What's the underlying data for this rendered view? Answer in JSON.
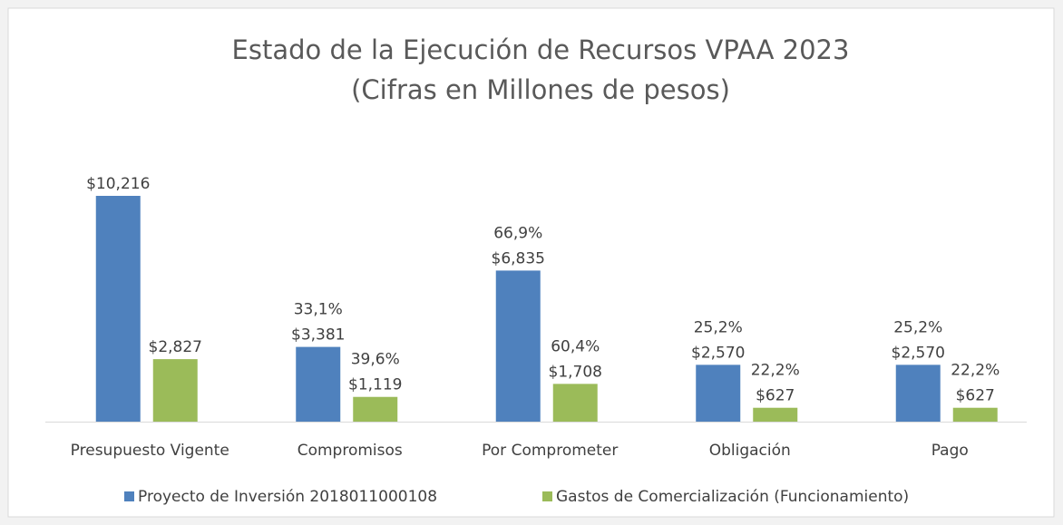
{
  "chart_data": {
    "type": "bar",
    "title": "Estado de la Ejecución de Recursos VPAA 2023",
    "subtitle": "(Cifras en Millones de pesos)",
    "categories": [
      "Presupuesto Vigente",
      "Compromisos",
      "Por Comprometer",
      "Obligación",
      "Pago"
    ],
    "series": [
      {
        "name": "Proyecto de Inversión 2018011000108",
        "color": "#4f81bd",
        "values": [
          10216,
          3381,
          6835,
          2570,
          2570
        ],
        "value_labels": [
          "$10,216",
          "$3,381",
          "$6,835",
          "$2,570",
          "$2,570"
        ],
        "percent_labels": [
          null,
          "33,1%",
          "66,9%",
          "25,2%",
          "25,2%"
        ]
      },
      {
        "name": "Gastos de Comercialización (Funcionamiento)",
        "color": "#9bbb59",
        "values": [
          2827,
          1119,
          1708,
          627,
          627
        ],
        "value_labels": [
          "$2,827",
          "$1,119",
          "$1,708",
          "$627",
          "$627"
        ],
        "percent_labels": [
          null,
          "39,6%",
          "60,4%",
          "22,2%",
          "22,2%"
        ]
      }
    ],
    "legend": "bottom"
  }
}
